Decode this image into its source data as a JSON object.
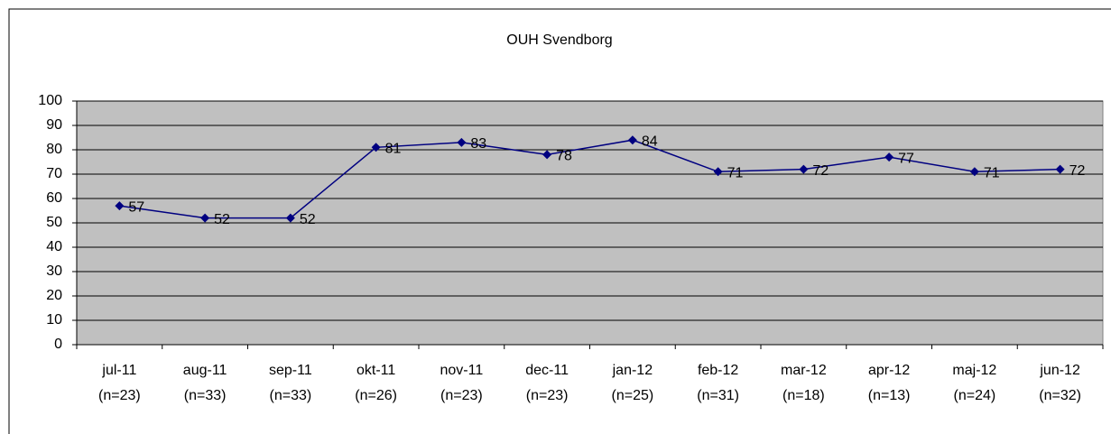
{
  "chart_data": {
    "type": "line",
    "title": "OUH Svendborg",
    "categories": [
      [
        "jul-11",
        "(n=23)"
      ],
      [
        "aug-11",
        "(n=33)"
      ],
      [
        "sep-11",
        "(n=33)"
      ],
      [
        "okt-11",
        "(n=26)"
      ],
      [
        "nov-11",
        "(n=23)"
      ],
      [
        "dec-11",
        "(n=23)"
      ],
      [
        "jan-12",
        "(n=25)"
      ],
      [
        "feb-12",
        "(n=31)"
      ],
      [
        "mar-12",
        "(n=18)"
      ],
      [
        "apr-12",
        "(n=13)"
      ],
      [
        "maj-12",
        "(n=24)"
      ],
      [
        "jun-12",
        "(n=32)"
      ]
    ],
    "series": [
      {
        "color": "#000080",
        "values": [
          57,
          52,
          52,
          81,
          83,
          78,
          84,
          71,
          72,
          77,
          71,
          72
        ]
      }
    ],
    "ylim": [
      0,
      100
    ],
    "yticks": [
      0,
      10,
      20,
      30,
      40,
      50,
      60,
      70,
      80,
      90,
      100
    ],
    "grid": true,
    "plot_background": "#c0c0c0"
  }
}
